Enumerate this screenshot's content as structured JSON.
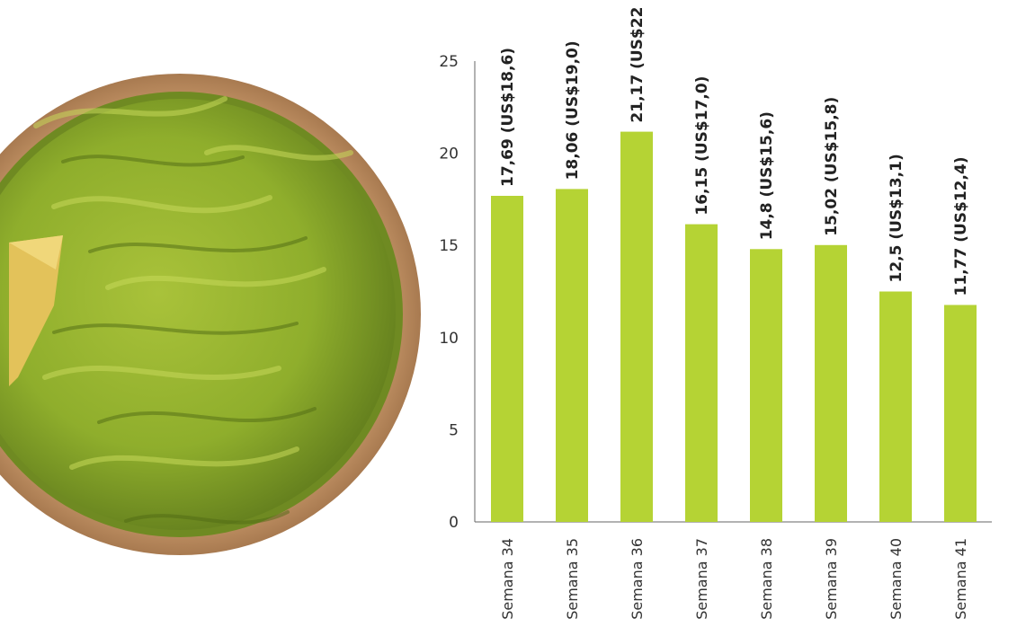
{
  "image": {
    "description_icon": "guacamole-bowl-photo"
  },
  "chart_data": {
    "type": "bar",
    "categories": [
      "Semana 34",
      "Semana 35",
      "Semana 36",
      "Semana 37",
      "Semana 38",
      "Semana 39",
      "Semana 40",
      "Semana 41"
    ],
    "values": [
      17.69,
      18.06,
      21.17,
      16.15,
      14.8,
      15.02,
      12.5,
      11.77
    ],
    "data_labels": [
      "17,69 (US$18,6)",
      "18,06 (US$19,0)",
      "21,17 (US$22",
      "16,15 (US$17,0)",
      "14,8 (US$15,6)",
      "15,02 (US$15,8)",
      "12,5 (US$13,1)",
      "11,77 (US$12,4)"
    ],
    "yticks": [
      "0",
      "5",
      "10",
      "15",
      "20",
      "25"
    ],
    "ylim": [
      0,
      25
    ],
    "title": "",
    "xlabel": "",
    "ylabel": "",
    "grid": false,
    "bar_color": "#b5d334"
  }
}
